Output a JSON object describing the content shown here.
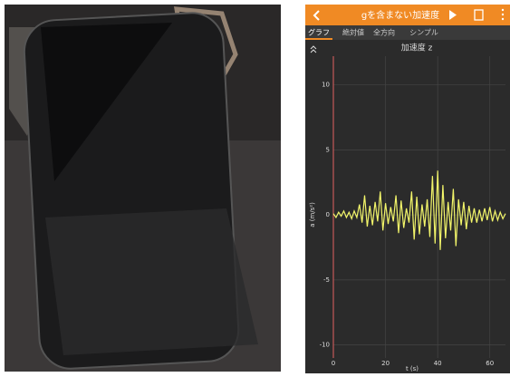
{
  "header": {
    "title": "gを含まない加速度"
  },
  "tabs": [
    "グラフ",
    "絶対値",
    "全方向",
    "シンプル"
  ],
  "chart_data": {
    "type": "line",
    "title": "加速度 z",
    "ylabel": "a (m/s²)",
    "xlabel": "t (s)",
    "color": "#f2f56a",
    "axis_color": "#e06060",
    "x": [
      0,
      1,
      2,
      3,
      4,
      5,
      6,
      7,
      8,
      9,
      10,
      11,
      12,
      13,
      14,
      15,
      16,
      17,
      18,
      19,
      20,
      21,
      22,
      23,
      24,
      25,
      26,
      27,
      28,
      29,
      30,
      31,
      32,
      33,
      34,
      35,
      36,
      37,
      38,
      39,
      40,
      41,
      42,
      43,
      44,
      45,
      46,
      47,
      48,
      49,
      50,
      51,
      52,
      53,
      54,
      55,
      56,
      57,
      58,
      59,
      60,
      61,
      62,
      63,
      64,
      65,
      66
    ],
    "values": [
      0.1,
      -0.2,
      0.2,
      -0.1,
      0.3,
      -0.2,
      0.2,
      -0.3,
      0.3,
      -0.2,
      0.8,
      -0.6,
      1.5,
      -0.9,
      0.7,
      -0.8,
      1.0,
      -0.5,
      1.8,
      -1.2,
      0.9,
      -0.7,
      0.6,
      -0.5,
      1.5,
      -1.4,
      1.1,
      -1.0,
      0.5,
      -0.6,
      1.8,
      -1.9,
      1.4,
      -1.5,
      0.8,
      -0.9,
      1.2,
      -1.7,
      3.0,
      -2.2,
      3.4,
      -2.7,
      2.3,
      -1.8,
      1.0,
      -1.2,
      2.0,
      -2.4,
      1.2,
      -0.8,
      1.0,
      -1.1,
      0.7,
      -0.6,
      0.5,
      -0.6,
      0.4,
      -0.5,
      0.5,
      -0.4,
      0.6,
      -0.5,
      0.3,
      -0.4,
      0.2,
      -0.3,
      0.1
    ],
    "xlim": [
      0,
      66
    ],
    "ylim": [
      -11,
      12.2
    ],
    "xticks": [
      0,
      20,
      40,
      60
    ],
    "yticks": [
      10,
      5,
      0,
      -5,
      -10
    ],
    "grid": true
  }
}
